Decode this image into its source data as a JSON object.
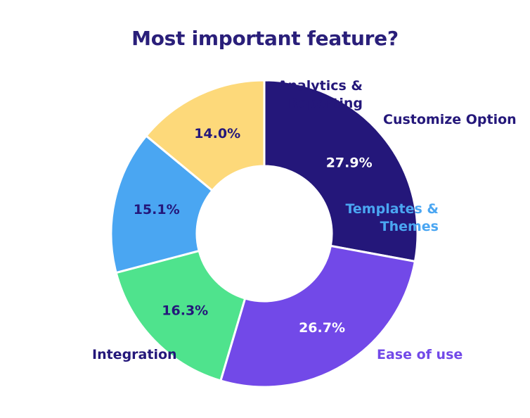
{
  "chart_data": {
    "type": "pie",
    "title": "Most important feature?",
    "categories": [
      "Customize Option",
      "Ease of use",
      "Integration",
      "Templates & Themes",
      "Analytics & Reporting"
    ],
    "values": [
      27.9,
      26.7,
      16.3,
      15.1,
      14.0
    ],
    "value_labels": [
      "27.9%",
      "26.7%",
      "16.3%",
      "15.1%",
      "14.0%"
    ],
    "category_label_lines": [
      [
        "Customize Option"
      ],
      [
        "Ease of use"
      ],
      [
        "Integration"
      ],
      [
        "Templates &",
        "Themes"
      ],
      [
        "Analytics &",
        "Reporting"
      ]
    ],
    "colors": [
      "#24177a",
      "#7249e8",
      "#4fe38d",
      "#4aa6f2",
      "#fdd97a"
    ],
    "value_label_colors": [
      "#ffffff",
      "#ffffff",
      "#24177a",
      "#24177a",
      "#24177a"
    ],
    "category_label_colors": [
      "#24177a",
      "#7249e8",
      "#24177a",
      "#4aa6f2",
      "#24177a"
    ],
    "style": "donut",
    "start_angle": "12 o'clock, clockwise",
    "legend": "none"
  }
}
